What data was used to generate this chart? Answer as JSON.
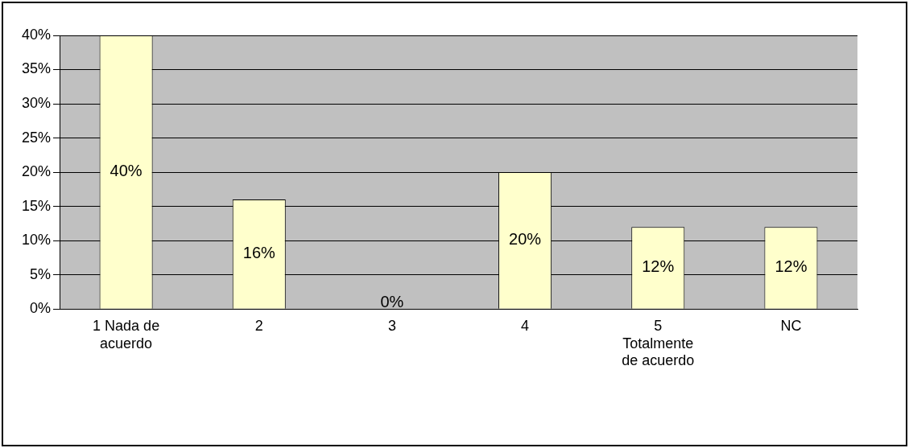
{
  "chart_data": {
    "type": "bar",
    "categories": [
      "1 Nada de acuerdo",
      "2",
      "3",
      "4",
      "5 Totalmente de acuerdo",
      "NC"
    ],
    "values": [
      40,
      16,
      0,
      20,
      12,
      12
    ],
    "color": "#ffffcc",
    "value_labels": [
      "40%",
      "16%",
      "0%",
      "20%",
      "12%",
      "12%"
    ],
    "ylim": [
      0,
      40
    ],
    "yticks": [
      {
        "value": 0,
        "label": "0%"
      },
      {
        "value": 5,
        "label": "5%"
      },
      {
        "value": 10,
        "label": "10%"
      },
      {
        "value": 15,
        "label": "15%"
      },
      {
        "value": 20,
        "label": "20%"
      },
      {
        "value": 25,
        "label": "25%"
      },
      {
        "value": 30,
        "label": "30%"
      },
      {
        "value": 35,
        "label": "35%"
      },
      {
        "value": 40,
        "label": "40%"
      }
    ],
    "grid": "y"
  }
}
